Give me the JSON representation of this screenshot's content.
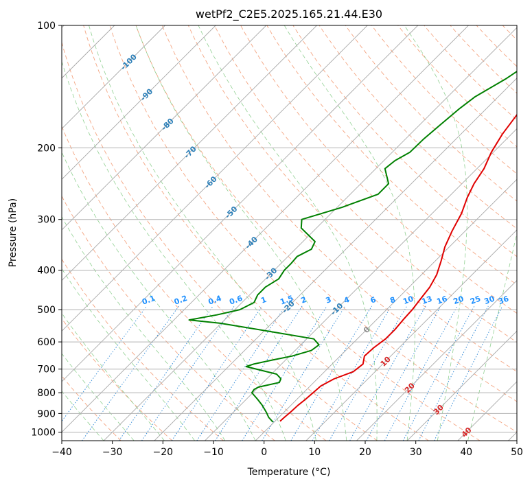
{
  "chart_data": {
    "type": "line",
    "title": "wetPf2_C2E5.2025.165.21.44.E30",
    "xlabel": "Temperature (°C)",
    "ylabel": "Pressure (hPa)",
    "xlim": [
      -40,
      50
    ],
    "ylim": [
      1050,
      100
    ],
    "y_scale": "log",
    "grid": true,
    "x_ticks": [
      -40,
      -30,
      -20,
      -10,
      0,
      10,
      20,
      30,
      40,
      50
    ],
    "y_ticks": [
      100,
      200,
      300,
      400,
      500,
      600,
      700,
      800,
      900,
      1000
    ],
    "skew_isotherm_labels": [
      "-100",
      "-90",
      "-80",
      "-70",
      "-60",
      "-50",
      "-40",
      "-30",
      "-20",
      "-10",
      "0",
      "10",
      "20",
      "30",
      "40"
    ],
    "mixing_ratio_labels": [
      "0.1",
      "0.2",
      "0.4",
      "0.6",
      "1",
      "1.5",
      "2",
      "3",
      "4",
      "6",
      "8",
      "10",
      "13",
      "16",
      "20",
      "25",
      "30",
      "36"
    ],
    "series": [
      {
        "color": "#e00000",
        "points": [
          [
            -10.8,
            100
          ],
          [
            -10.5,
            110
          ],
          [
            -10.9,
            125
          ],
          [
            -11.8,
            145
          ],
          [
            -12.8,
            165
          ],
          [
            -11.8,
            185
          ],
          [
            -10.4,
            205
          ],
          [
            -8.6,
            225
          ],
          [
            -7.6,
            245
          ],
          [
            -6.2,
            265
          ],
          [
            -4.2,
            290
          ],
          [
            -2.6,
            320
          ],
          [
            -0.9,
            350
          ],
          [
            1.2,
            380
          ],
          [
            3.0,
            410
          ],
          [
            4.1,
            440
          ],
          [
            4.6,
            470
          ],
          [
            5.1,
            500
          ],
          [
            5.3,
            530
          ],
          [
            5.6,
            560
          ],
          [
            5.6,
            590
          ],
          [
            5.0,
            620
          ],
          [
            4.8,
            650
          ],
          [
            6.1,
            680
          ],
          [
            5.7,
            710
          ],
          [
            3.3,
            740
          ],
          [
            2.1,
            770
          ],
          [
            1.9,
            800
          ],
          [
            1.7,
            830
          ],
          [
            1.4,
            860
          ],
          [
            1.3,
            890
          ],
          [
            1.1,
            920
          ],
          [
            1.0,
            940
          ]
        ]
      },
      {
        "color": "#008000",
        "points": [
          [
            -17.0,
            100
          ],
          [
            -18.4,
            110
          ],
          [
            -20.0,
            120
          ],
          [
            -22.0,
            135
          ],
          [
            -24.6,
            150
          ],
          [
            -25.3,
            160
          ],
          [
            -25.9,
            175
          ],
          [
            -26.4,
            190
          ],
          [
            -26.5,
            205
          ],
          [
            -27.8,
            215
          ],
          [
            -28.2,
            225
          ],
          [
            -24.5,
            245
          ],
          [
            -24.5,
            260
          ],
          [
            -29.0,
            280
          ],
          [
            -34.6,
            300
          ],
          [
            -33.0,
            315
          ],
          [
            -27.6,
            340
          ],
          [
            -26.8,
            355
          ],
          [
            -28.2,
            370
          ],
          [
            -28.0,
            385
          ],
          [
            -28.0,
            400
          ],
          [
            -27.4,
            420
          ],
          [
            -28.4,
            440
          ],
          [
            -28.4,
            460
          ],
          [
            -27.6,
            480
          ],
          [
            -29.0,
            500
          ],
          [
            -32.5,
            515
          ],
          [
            -37.0,
            530
          ],
          [
            -30.2,
            540
          ],
          [
            -19.0,
            565
          ],
          [
            -8.6,
            590
          ],
          [
            -6.4,
            610
          ],
          [
            -6.8,
            630
          ],
          [
            -9.5,
            650
          ],
          [
            -12.6,
            665
          ],
          [
            -15.5,
            680
          ],
          [
            -16.5,
            690
          ],
          [
            -12.7,
            705
          ],
          [
            -9.0,
            720
          ],
          [
            -7.6,
            735
          ],
          [
            -7.2,
            740
          ],
          [
            -6.8,
            755
          ],
          [
            -10.0,
            775
          ],
          [
            -10.4,
            785
          ],
          [
            -10.2,
            800
          ],
          [
            -7.8,
            830
          ],
          [
            -5.6,
            860
          ],
          [
            -3.4,
            895
          ],
          [
            -2.0,
            920
          ],
          [
            -0.2,
            945
          ]
        ]
      }
    ]
  }
}
